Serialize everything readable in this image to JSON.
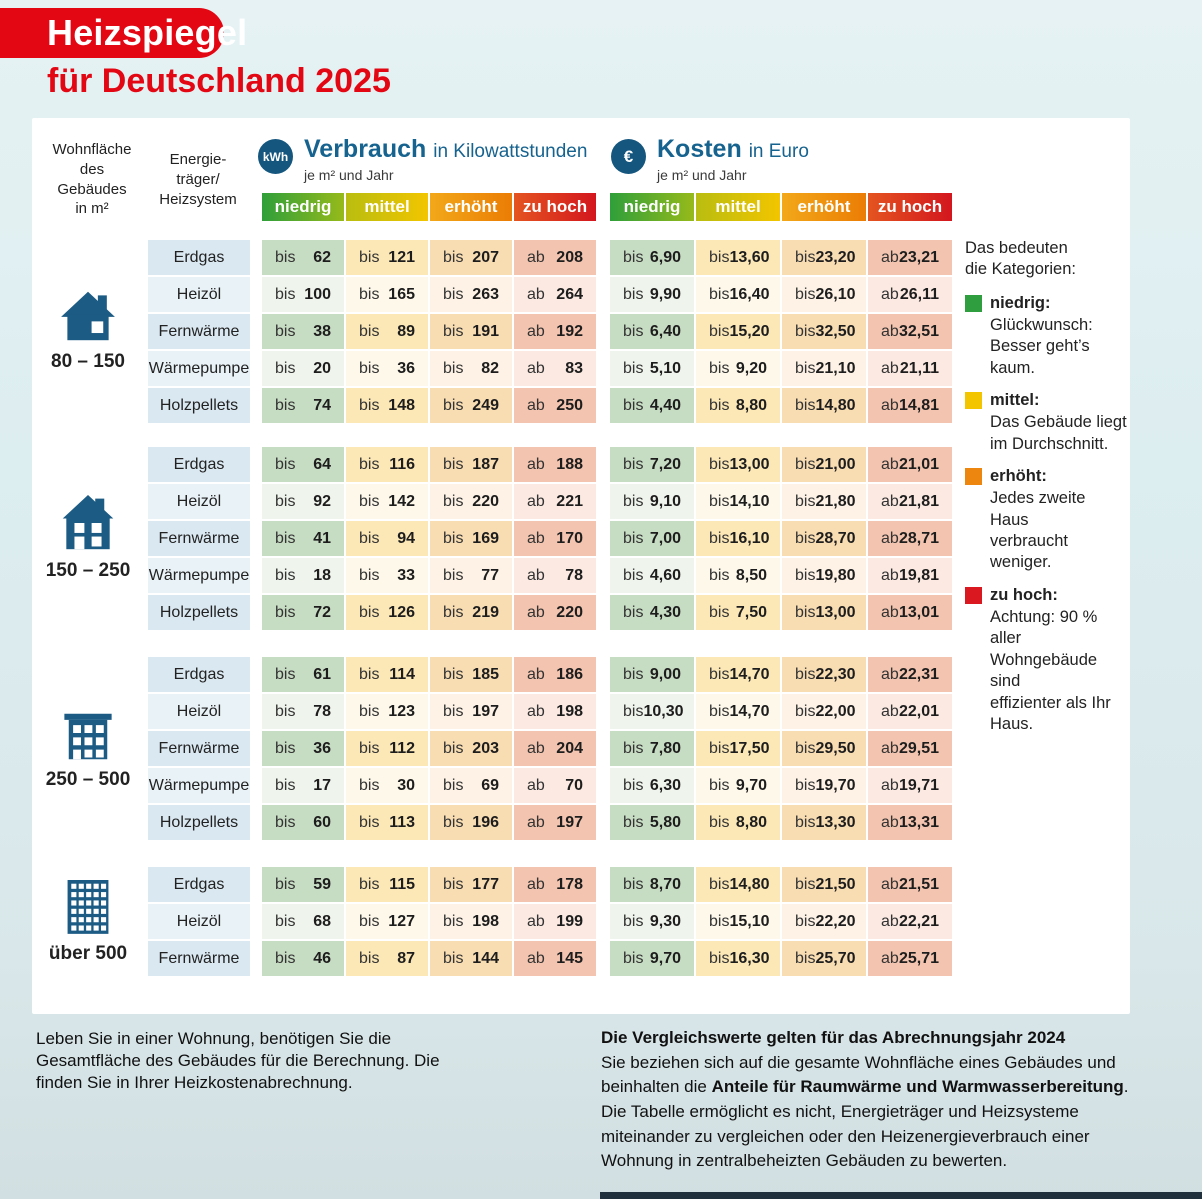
{
  "header": {
    "badge": "Heizspiegel",
    "subtitle": "für Deutschland 2025"
  },
  "table_header": {
    "area_label": "Wohnfläche\ndes\nGebäudes\nin m²",
    "carrier_label": "Energie-\nträger/\nHeizsystem",
    "verbrauch": {
      "badge": "kWh",
      "title": "Verbrauch",
      "unit": "in Kilowattstunden",
      "per": "je m² und Jahr"
    },
    "kosten": {
      "badge": "€",
      "title": "Kosten",
      "unit": "in Euro",
      "per": "je m² und Jahr"
    }
  },
  "chart_data": {
    "type": "table",
    "title": "Heizspiegel für Deutschland 2025",
    "categories": [
      "niedrig",
      "mittel",
      "erhöht",
      "zu hoch"
    ],
    "units": {
      "verbrauch": "Kilowattstunden je m² und Jahr",
      "kosten": "Euro je m² und Jahr"
    },
    "groups": [
      {
        "range": "80 – 150",
        "icon": "house-small",
        "rows": [
          {
            "label": "Erdgas",
            "verbrauch": [
              "bis 62",
              "bis 121",
              "bis 207",
              "ab 208"
            ],
            "kosten": [
              "bis 6,90",
              "bis 13,60",
              "bis 23,20",
              "ab 23,21"
            ]
          },
          {
            "label": "Heizöl",
            "verbrauch": [
              "bis 100",
              "bis 165",
              "bis 263",
              "ab 264"
            ],
            "kosten": [
              "bis 9,90",
              "bis 16,40",
              "bis 26,10",
              "ab 26,11"
            ]
          },
          {
            "label": "Fernwärme",
            "verbrauch": [
              "bis 38",
              "bis 89",
              "bis 191",
              "ab 192"
            ],
            "kosten": [
              "bis 6,40",
              "bis 15,20",
              "bis 32,50",
              "ab 32,51"
            ]
          },
          {
            "label": "Wärmepumpe",
            "verbrauch": [
              "bis 20",
              "bis 36",
              "bis 82",
              "ab 83"
            ],
            "kosten": [
              "bis 5,10",
              "bis 9,20",
              "bis 21,10",
              "ab 21,11"
            ]
          },
          {
            "label": "Holzpellets",
            "verbrauch": [
              "bis 74",
              "bis 148",
              "bis 249",
              "ab 250"
            ],
            "kosten": [
              "bis 4,40",
              "bis 8,80",
              "bis 14,80",
              "ab 14,81"
            ]
          }
        ]
      },
      {
        "range": "150 – 250",
        "icon": "house-large",
        "rows": [
          {
            "label": "Erdgas",
            "verbrauch": [
              "bis 64",
              "bis 116",
              "bis 187",
              "ab 188"
            ],
            "kosten": [
              "bis 7,20",
              "bis 13,00",
              "bis 21,00",
              "ab 21,01"
            ]
          },
          {
            "label": "Heizöl",
            "verbrauch": [
              "bis 92",
              "bis 142",
              "bis 220",
              "ab 221"
            ],
            "kosten": [
              "bis 9,10",
              "bis 14,10",
              "bis 21,80",
              "ab 21,81"
            ]
          },
          {
            "label": "Fernwärme",
            "verbrauch": [
              "bis 41",
              "bis 94",
              "bis 169",
              "ab 170"
            ],
            "kosten": [
              "bis 7,00",
              "bis 16,10",
              "bis 28,70",
              "ab 28,71"
            ]
          },
          {
            "label": "Wärmepumpe",
            "verbrauch": [
              "bis 18",
              "bis 33",
              "bis 77",
              "ab 78"
            ],
            "kosten": [
              "bis 4,60",
              "bis 8,50",
              "bis 19,80",
              "ab 19,81"
            ]
          },
          {
            "label": "Holzpellets",
            "verbrauch": [
              "bis 72",
              "bis 126",
              "bis 219",
              "ab 220"
            ],
            "kosten": [
              "bis 4,30",
              "bis 7,50",
              "bis 13,00",
              "ab 13,01"
            ]
          }
        ]
      },
      {
        "range": "250 – 500",
        "icon": "apartment-block",
        "rows": [
          {
            "label": "Erdgas",
            "verbrauch": [
              "bis 61",
              "bis 114",
              "bis 185",
              "ab 186"
            ],
            "kosten": [
              "bis 9,00",
              "bis 14,70",
              "bis 22,30",
              "ab 22,31"
            ]
          },
          {
            "label": "Heizöl",
            "verbrauch": [
              "bis 78",
              "bis 123",
              "bis 197",
              "ab 198"
            ],
            "kosten": [
              "bis 10,30",
              "bis 14,70",
              "bis 22,00",
              "ab 22,01"
            ]
          },
          {
            "label": "Fernwärme",
            "verbrauch": [
              "bis 36",
              "bis 112",
              "bis 203",
              "ab 204"
            ],
            "kosten": [
              "bis 7,80",
              "bis 17,50",
              "bis 29,50",
              "ab 29,51"
            ]
          },
          {
            "label": "Wärmepumpe",
            "verbrauch": [
              "bis 17",
              "bis 30",
              "bis 69",
              "ab 70"
            ],
            "kosten": [
              "bis 6,30",
              "bis 9,70",
              "bis 19,70",
              "ab 19,71"
            ]
          },
          {
            "label": "Holzpellets",
            "verbrauch": [
              "bis 60",
              "bis 113",
              "bis 196",
              "ab 197"
            ],
            "kosten": [
              "bis 5,80",
              "bis 8,80",
              "bis 13,30",
              "ab 13,31"
            ]
          }
        ]
      },
      {
        "range": "über 500",
        "icon": "highrise",
        "rows": [
          {
            "label": "Erdgas",
            "verbrauch": [
              "bis 59",
              "bis 115",
              "bis 177",
              "ab 178"
            ],
            "kosten": [
              "bis 8,70",
              "bis 14,80",
              "bis 21,50",
              "ab 21,51"
            ]
          },
          {
            "label": "Heizöl",
            "verbrauch": [
              "bis 68",
              "bis 127",
              "bis 198",
              "ab 199"
            ],
            "kosten": [
              "bis 9,30",
              "bis 15,10",
              "bis 22,20",
              "ab 22,21"
            ]
          },
          {
            "label": "Fernwärme",
            "verbrauch": [
              "bis 46",
              "bis 87",
              "bis 144",
              "ab 145"
            ],
            "kosten": [
              "bis 9,70",
              "bis 16,30",
              "bis 25,70",
              "ab 25,71"
            ]
          }
        ]
      }
    ]
  },
  "legend": {
    "title": "Das bedeuten\ndie Kategorien:",
    "items": [
      {
        "label": "niedrig:",
        "color": "#2f9e3e",
        "text": "Glückwunsch:\nBesser geht’s kaum."
      },
      {
        "label": "mittel:",
        "color": "#f2c500",
        "text": "Das Gebäude liegt\nim Durchschnitt."
      },
      {
        "label": "erhöht:",
        "color": "#ec860e",
        "text": "Jedes zweite Haus\nverbraucht weniger."
      },
      {
        "label": "zu hoch:",
        "color": "#d9191f",
        "text": "Achtung: 90 % aller\nWohngebäude sind\neffizienter als Ihr\nHaus."
      }
    ]
  },
  "footnotes": {
    "left": "Leben Sie in einer Wohnung, benötigen Sie die Gesamtfläche des Gebäudes für die Berechnung. Die finden Sie in Ihrer Heizkostenabrechnung.",
    "right_title": "Die Vergleichswerte gelten für das Abrechnungsjahr 2024",
    "right_parts": [
      "Sie beziehen sich auf die gesamte Wohnfläche eines Gebäudes und beinhalten die ",
      "Anteile für Raumwärme und Warmwasserbereitung",
      ". Die Tabelle ermöglicht es nicht, Energieträger und Heizsysteme miteinander zu vergleichen oder den Heizenergieverbrauch einer Wohnung in zentralbeheizten Gebäuden zu bewerten."
    ]
  },
  "colors": {
    "brand_red": "#e30613",
    "heading_blue": "#17638f",
    "badge_circle_blue": "#15567e",
    "building_icon_blue": "#1c5b84",
    "category_green": "#2f9e3e",
    "category_yellow": "#f2c500",
    "category_orange": "#ec860e",
    "category_red": "#d9191f",
    "page_background": "#ddeef0",
    "panel_background": "#ffffff"
  }
}
